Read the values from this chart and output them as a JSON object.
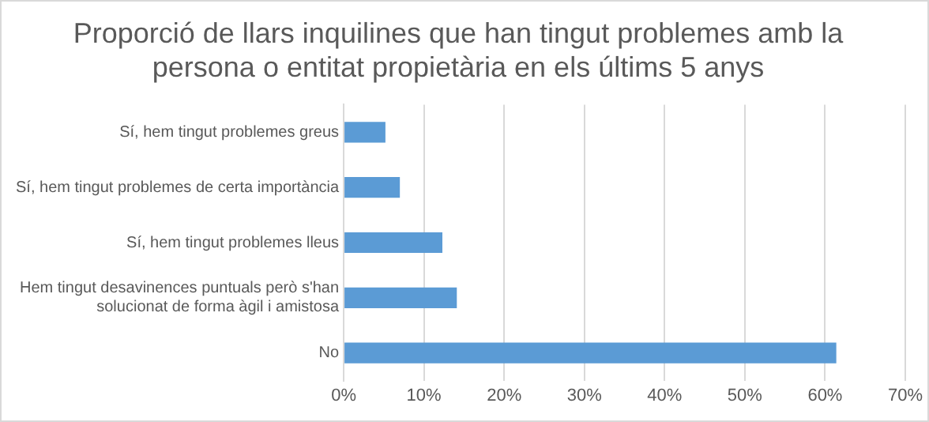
{
  "chart_data": {
    "type": "bar",
    "orientation": "horizontal",
    "title": "Proporció de llars inquilines que han tingut problemes amb la persona o entitat propietària en els últims 5 anys",
    "categories": [
      "Sí, hem tingut problemes greus",
      "Sí, hem tingut problemes de certa importància",
      "Sí, hem tingut problemes lleus",
      "Hem tingut desavinences puntuals però s'han solucionat de forma àgil i amistosa",
      "No"
    ],
    "values": [
      5.2,
      7.0,
      12.3,
      14.1,
      61.4
    ],
    "color": "#5b9bd5",
    "xlim": [
      0,
      70
    ],
    "xticks": [
      {
        "value": 0,
        "label": "0%"
      },
      {
        "value": 10,
        "label": "10%"
      },
      {
        "value": 20,
        "label": "20%"
      },
      {
        "value": 30,
        "label": "30%"
      },
      {
        "value": 40,
        "label": "40%"
      },
      {
        "value": 50,
        "label": "50%"
      },
      {
        "value": 60,
        "label": "60%"
      },
      {
        "value": 70,
        "label": "70%"
      }
    ],
    "grid": "x",
    "legend": false
  }
}
